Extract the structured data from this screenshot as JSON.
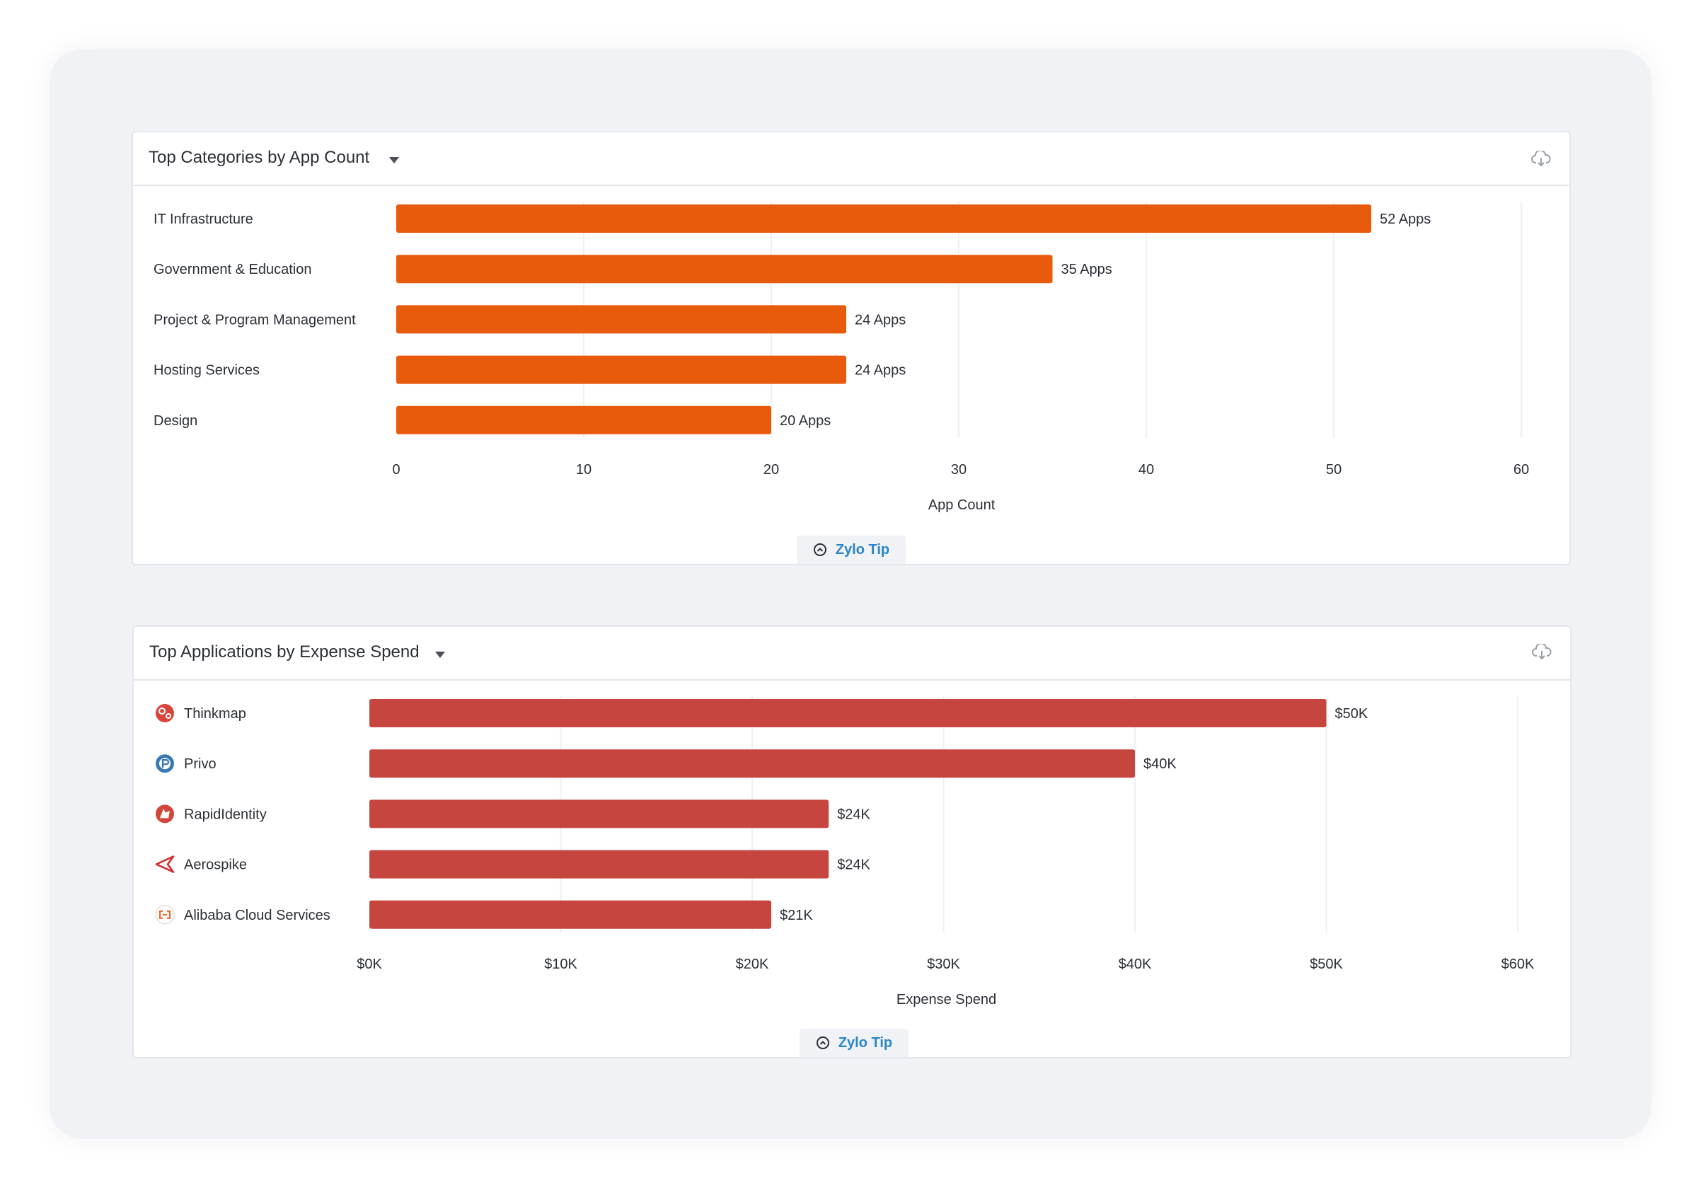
{
  "panels": [
    {
      "title": "Top Categories by App Count",
      "tip_label": "Zylo Tip",
      "download_icon": "cloud-download-icon",
      "tip_icon": "chevron-up-circle-icon",
      "caret_icon": "caret-down-icon"
    },
    {
      "title": "Top Applications by Expense Spend",
      "tip_label": "Zylo Tip",
      "download_icon": "cloud-download-icon",
      "tip_icon": "chevron-up-circle-icon",
      "caret_icon": "caret-down-icon"
    }
  ],
  "chart_data": [
    {
      "type": "bar",
      "orientation": "horizontal",
      "categories": [
        "IT Infrastructure",
        "Government & Education",
        "Project & Program Management",
        "Hosting Services",
        "Design"
      ],
      "values": [
        52,
        35,
        24,
        24,
        20
      ],
      "data_labels": [
        "52 Apps",
        "35 Apps",
        "24 Apps",
        "24 Apps",
        "20 Apps"
      ],
      "xlabel": "App Count",
      "xlim": [
        0,
        60
      ],
      "ticks": [
        0,
        10,
        20,
        30,
        40,
        50,
        60
      ],
      "tick_labels": [
        "0",
        "10",
        "20",
        "30",
        "40",
        "50",
        "60"
      ],
      "grid": true,
      "bar_color": "#e85a0c"
    },
    {
      "type": "bar",
      "orientation": "horizontal",
      "categories": [
        "Thinkmap",
        "Privo",
        "RapidIdentity",
        "Aerospike",
        "Alibaba Cloud Services"
      ],
      "category_icons": [
        "thinkmap-logo-icon",
        "privo-logo-icon",
        "rapididentity-logo-icon",
        "aerospike-logo-icon",
        "alibaba-cloud-logo-icon"
      ],
      "values": [
        50000,
        40000,
        24000,
        24000,
        21000
      ],
      "data_labels": [
        "$50K",
        "$40K",
        "$24K",
        "$24K",
        "$21K"
      ],
      "xlabel": "Expense Spend",
      "xlim": [
        0,
        60000
      ],
      "ticks": [
        0,
        10000,
        20000,
        30000,
        40000,
        50000,
        60000
      ],
      "tick_labels": [
        "$0K",
        "$10K",
        "$20K",
        "$30K",
        "$40K",
        "$50K",
        "$60K"
      ],
      "grid": true,
      "bar_color": "#c6453f"
    }
  ]
}
